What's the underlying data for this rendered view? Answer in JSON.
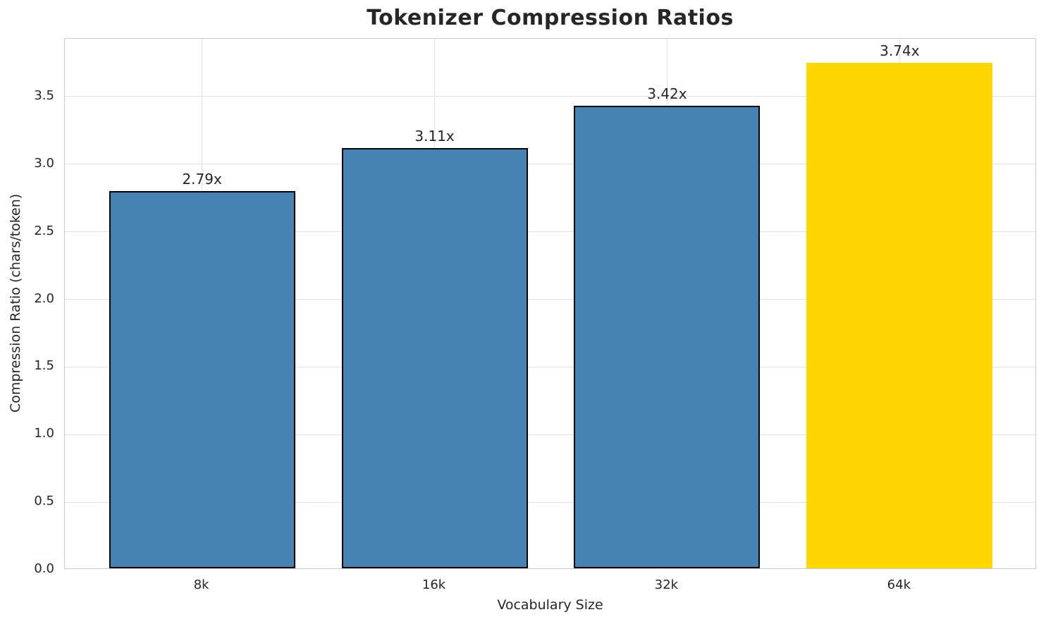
{
  "chart_data": {
    "type": "bar",
    "title": "Tokenizer Compression Ratios",
    "xlabel": "Vocabulary Size",
    "ylabel": "Compression Ratio (chars/token)",
    "categories": [
      "8k",
      "16k",
      "32k",
      "64k"
    ],
    "values": [
      2.79,
      3.11,
      3.42,
      3.74
    ],
    "bar_labels": [
      "2.79x",
      "3.11x",
      "3.42x",
      "3.74x"
    ],
    "bar_colors": [
      "#4682B4",
      "#4682B4",
      "#4682B4",
      "#FFD700"
    ],
    "bar_edge_colors": [
      "#000000",
      "#000000",
      "#000000",
      "none"
    ],
    "ytick_labels": [
      "0.0",
      "0.5",
      "1.0",
      "1.5",
      "2.0",
      "2.5",
      "3.0",
      "3.5"
    ],
    "yticks": [
      0.0,
      0.5,
      1.0,
      1.5,
      2.0,
      2.5,
      3.0,
      3.5
    ],
    "ylim": [
      0,
      3.927
    ],
    "bar_width_fraction": 0.8,
    "grid": true,
    "legend": "none",
    "style_colors": {
      "background": "#ffffff",
      "grid": "#e0e0e0",
      "spine": "#cccccc",
      "text": "#262626",
      "bar_default": "#4682B4",
      "bar_highlight": "#FFD700"
    }
  }
}
